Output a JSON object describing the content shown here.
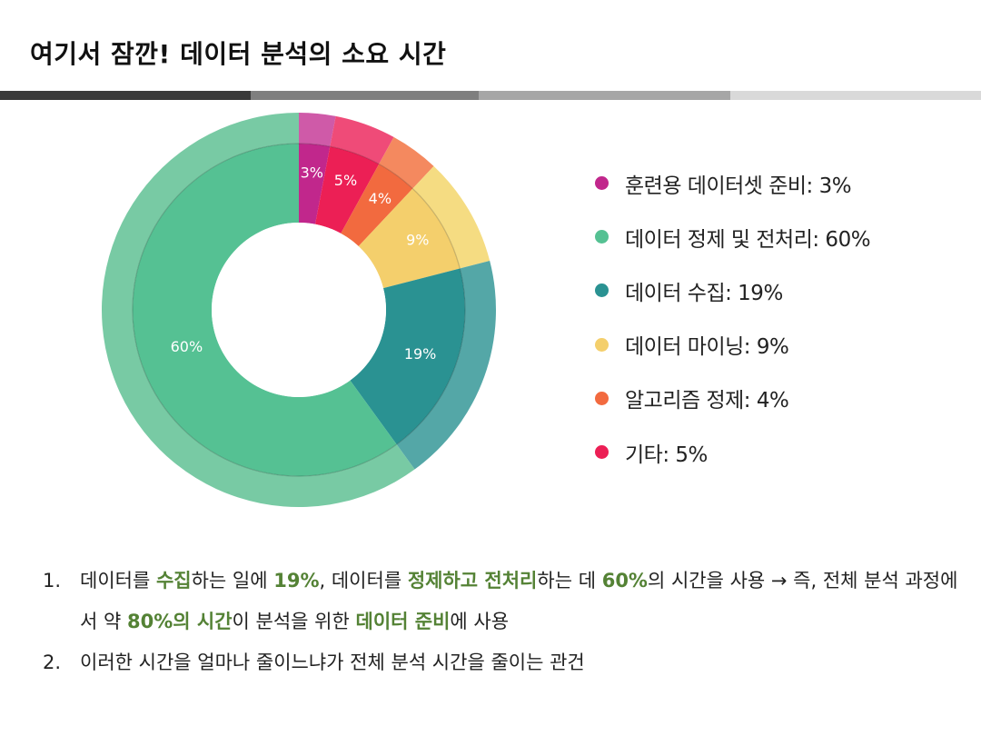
{
  "title": "여기서 잠깐! 데이터 분석의 소요 시간",
  "title_bar_colors": [
    "#3a3a3a",
    "#7f7f7f",
    "#a6a6a6",
    "#d9d9d9"
  ],
  "chart_data": {
    "type": "pie",
    "style": "donut",
    "slices": [
      {
        "label": "훈련용 데이터셋 준비",
        "value": 3,
        "data_label": "3%",
        "color": "#c1278c",
        "outer_color": "#cf5aa8"
      },
      {
        "label": "기타",
        "value": 5,
        "data_label": "5%",
        "color": "#ec1f55",
        "outer_color": "#ef4b78"
      },
      {
        "label": "알고리즘 정제",
        "value": 4,
        "data_label": "4%",
        "color": "#f26a3f",
        "outer_color": "#f4895f"
      },
      {
        "label": "데이터 마이닝",
        "value": 9,
        "data_label": "9%",
        "color": "#f4cf6c",
        "outer_color": "#f5dc82"
      },
      {
        "label": "데이터 수집",
        "value": 19,
        "data_label": "19%",
        "color": "#2a9292",
        "outer_color": "#54a7a7"
      },
      {
        "label": "데이터 정제 및 전처리",
        "value": 60,
        "data_label": "60%",
        "color": "#55c193",
        "outer_color": "#78caa4"
      }
    ],
    "legend_position": "right"
  },
  "legend": [
    {
      "text": "훈련용 데이터셋 준비: 3%",
      "color": "#c1278c"
    },
    {
      "text": "데이터 정제 및 전처리: 60%",
      "color": "#55c193"
    },
    {
      "text": "데이터 수집: 19%",
      "color": "#2a9292"
    },
    {
      "text": "데이터 마이닝: 9%",
      "color": "#f4cf6c"
    },
    {
      "text": "알고리즘 정제: 4%",
      "color": "#f26a3f"
    },
    {
      "text": "기타: 5%",
      "color": "#ec1f55"
    }
  ],
  "notes": {
    "n1": {
      "num": "1.",
      "p1": "데이터를 ",
      "h1": "수집",
      "p2": "하는 일에 ",
      "h2": "19%",
      "p3": ", 데이터를 ",
      "h3": "정제하고 전처리",
      "p4": "하는 데 ",
      "h4": "60%",
      "p5": "의 시간을 사용 → 즉, 전체 분석 과정에서 약 ",
      "h5": "80%의 시간",
      "p6": "이 분석을 위한 ",
      "h6": "데이터 준비",
      "p7": "에 사용"
    },
    "n2": {
      "num": "2.",
      "text": "이러한 시간을 얼마나 줄이느냐가 전체 분석 시간을 줄이는 관건"
    }
  }
}
